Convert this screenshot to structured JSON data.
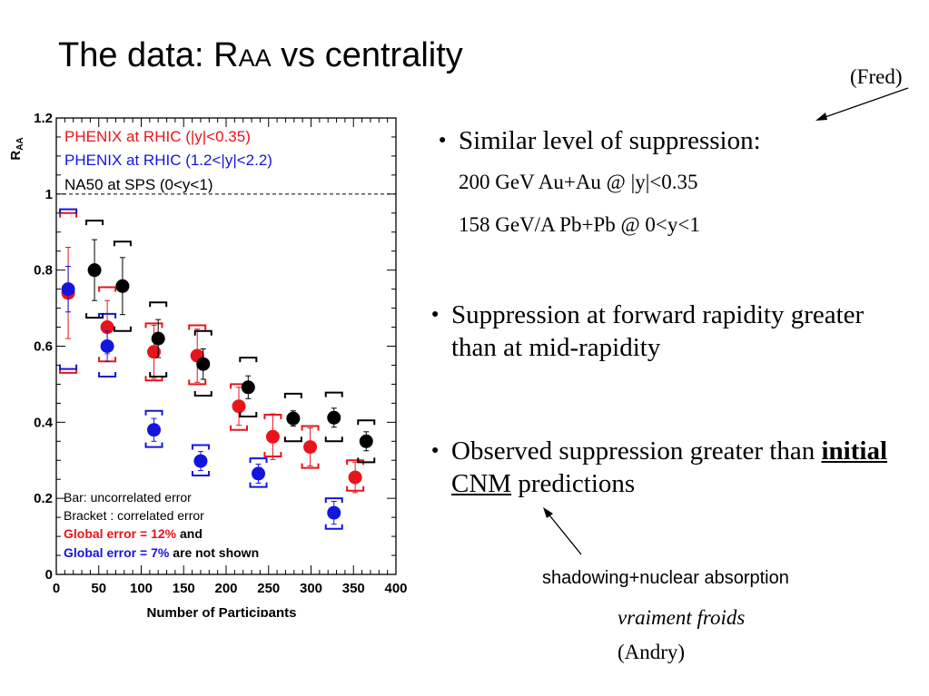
{
  "slide": {
    "title_prefix": "The data: R",
    "title_sub": "AA",
    "title_suffix": " vs centrality",
    "author_note": "(Fred)",
    "bullets": [
      {
        "text": "Similar level of suppression:"
      },
      {
        "text": "Suppression at forward rapidity greater than at mid-rapidity"
      },
      {
        "text_before": "Observed suppression greater than ",
        "bold_underline": "initial",
        "space": " ",
        "underline": "CNM",
        "text_after": " predictions"
      }
    ],
    "sublines": [
      "200 GeV Au+Au @ |y|<0.35",
      "158 GeV/A Pb+Pb @ 0<y<1"
    ],
    "annotation": "shadowing+nuclear absorption",
    "comment_italic": "vraiment froids",
    "comment_author": "(Andry)"
  },
  "chart_data": {
    "type": "scatter",
    "xlabel": "Number of Participants",
    "ylabel_main": "R",
    "ylabel_sub": "AA",
    "xlim": [
      0,
      400
    ],
    "ylim": [
      0,
      1.2
    ],
    "xticks": [
      "0",
      "50",
      "100",
      "150",
      "200",
      "250",
      "300",
      "350",
      "400"
    ],
    "yticks": [
      "0",
      "0.2",
      "0.4",
      "0.6",
      "0.8",
      "1",
      "1.2"
    ],
    "reference_line": 1,
    "legend": [
      {
        "label": "PHENIX at RHIC (|y|<0.35)",
        "color": "#e8141b"
      },
      {
        "label": "PHENIX at RHIC (1.2<|y|<2.2)",
        "color": "#1414e0"
      },
      {
        "label": "NA50 at SPS (0<y<1)",
        "color": "#000000"
      }
    ],
    "notes": {
      "bar": "Bar: uncorrelated error",
      "bracket": "Bracket : correlated error",
      "global_red": "Global error = 12%",
      "and": " and",
      "global_blue": "Global error = 7%",
      "not_shown": " are not shown"
    },
    "series": [
      {
        "name": "PHENIX at RHIC (|y|<0.35)",
        "color": "#e8141b",
        "points": [
          {
            "x": 14,
            "y": 0.74,
            "err": 0.12,
            "syslo": 0.53,
            "syshi": 0.95
          },
          {
            "x": 60,
            "y": 0.65,
            "err": 0.07,
            "syslo": 0.56,
            "syshi": 0.755
          },
          {
            "x": 115,
            "y": 0.585,
            "err": 0.07,
            "syslo": 0.51,
            "syshi": 0.66
          },
          {
            "x": 166,
            "y": 0.575,
            "err": 0.07,
            "syslo": 0.5,
            "syshi": 0.655
          },
          {
            "x": 215,
            "y": 0.442,
            "err": 0.05,
            "syslo": 0.38,
            "syshi": 0.5
          },
          {
            "x": 255,
            "y": 0.362,
            "err": 0.06,
            "syslo": 0.31,
            "syshi": 0.42
          },
          {
            "x": 299,
            "y": 0.335,
            "err": 0.05,
            "syslo": 0.28,
            "syshi": 0.39
          },
          {
            "x": 352,
            "y": 0.255,
            "err": 0.04,
            "syslo": 0.22,
            "syshi": 0.3
          }
        ]
      },
      {
        "name": "PHENIX at RHIC (1.2<|y|<2.2)",
        "color": "#1414e0",
        "points": [
          {
            "x": 14,
            "y": 0.75,
            "err": 0.06,
            "syslo": 0.54,
            "syshi": 0.96
          },
          {
            "x": 60,
            "y": 0.6,
            "err": 0.04,
            "syslo": 0.52,
            "syshi": 0.685
          },
          {
            "x": 115,
            "y": 0.38,
            "err": 0.03,
            "syslo": 0.335,
            "syshi": 0.43
          },
          {
            "x": 170,
            "y": 0.298,
            "err": 0.025,
            "syslo": 0.26,
            "syshi": 0.34
          },
          {
            "x": 238,
            "y": 0.265,
            "err": 0.025,
            "syslo": 0.23,
            "syshi": 0.305
          },
          {
            "x": 327,
            "y": 0.162,
            "err": 0.03,
            "syslo": 0.12,
            "syshi": 0.2
          }
        ]
      },
      {
        "name": "NA50 at SPS (0<y<1)",
        "color": "#000000",
        "points": [
          {
            "x": 45,
            "y": 0.8,
            "err": 0.08,
            "syslo": 0.675,
            "syshi": 0.93
          },
          {
            "x": 78,
            "y": 0.758,
            "err": 0.075,
            "syslo": 0.64,
            "syshi": 0.875
          },
          {
            "x": 120,
            "y": 0.62,
            "err": 0.05,
            "syslo": 0.52,
            "syshi": 0.715
          },
          {
            "x": 173,
            "y": 0.553,
            "err": 0.04,
            "syslo": 0.47,
            "syshi": 0.64
          },
          {
            "x": 226,
            "y": 0.492,
            "err": 0.03,
            "syslo": 0.415,
            "syshi": 0.57
          },
          {
            "x": 279,
            "y": 0.41,
            "err": 0.02,
            "syslo": 0.35,
            "syshi": 0.475
          },
          {
            "x": 327,
            "y": 0.412,
            "err": 0.025,
            "syslo": 0.35,
            "syshi": 0.478
          },
          {
            "x": 365,
            "y": 0.35,
            "err": 0.025,
            "syslo": 0.295,
            "syshi": 0.405
          }
        ]
      }
    ]
  }
}
